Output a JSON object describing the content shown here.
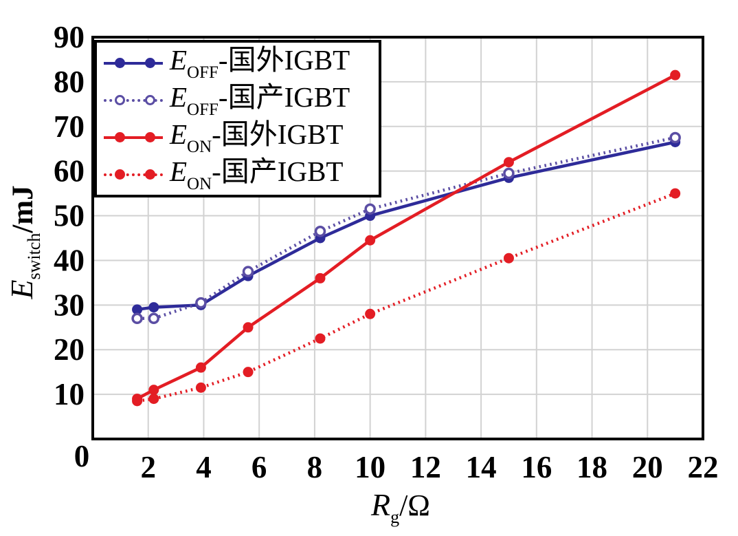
{
  "chart_data": {
    "type": "line",
    "title": "",
    "xlabel": {
      "var": "R",
      "sub": "g",
      "unit": "/Ω"
    },
    "ylabel": {
      "var": "E",
      "sub": "switch",
      "unit": "/mJ"
    },
    "xlim": [
      0,
      22
    ],
    "ylim": [
      0,
      90
    ],
    "xticks": [
      0,
      2,
      4,
      6,
      8,
      10,
      12,
      14,
      16,
      18,
      20,
      22
    ],
    "yticks": [
      0,
      10,
      20,
      30,
      40,
      50,
      60,
      70,
      80,
      90
    ],
    "grid": true,
    "grid_color": "#d2d2d2",
    "legend_position": "top-left",
    "x": [
      1.6,
      2.2,
      3.9,
      5.6,
      8.2,
      10,
      15,
      21
    ],
    "series": [
      {
        "label_var": "E",
        "label_sub": "OFF",
        "label_rest": "-国外IGBT",
        "color": "#2e2b99",
        "line": "solid",
        "marker": "filled",
        "values": [
          29,
          29.5,
          30,
          36.5,
          45,
          50,
          58.5,
          66.5
        ]
      },
      {
        "label_var": "E",
        "label_sub": "OFF",
        "label_rest": "-国产IGBT",
        "color": "#5b4ea4",
        "line": "dotted",
        "marker": "open",
        "values": [
          27,
          27,
          30.5,
          37.5,
          46.5,
          51.5,
          59.5,
          67.5
        ]
      },
      {
        "label_var": "E",
        "label_sub": "ON",
        "label_rest": "-国外IGBT",
        "color": "#e31d24",
        "line": "solid",
        "marker": "filled",
        "values": [
          9,
          11,
          16,
          25,
          36,
          44.5,
          62,
          81.5
        ]
      },
      {
        "label_var": "E",
        "label_sub": "ON",
        "label_rest": "-国产IGBT",
        "color": "#e31d24",
        "line": "dotted",
        "marker": "filled",
        "values": [
          8.5,
          9,
          11.5,
          15,
          22.5,
          28,
          40.5,
          55
        ]
      }
    ]
  }
}
